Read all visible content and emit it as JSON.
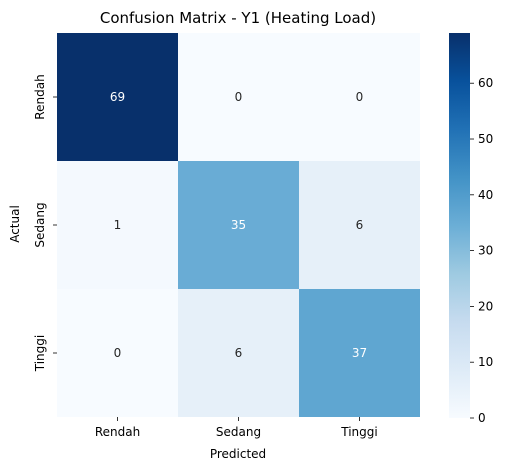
{
  "chart_data": {
    "type": "heatmap",
    "title": "Confusion Matrix - Y1 (Heating Load)",
    "xlabel": "Predicted",
    "ylabel": "Actual",
    "x_categories": [
      "Rendah",
      "Sedang",
      "Tinggi"
    ],
    "y_categories": [
      "Rendah",
      "Sedang",
      "Tinggi"
    ],
    "values": [
      [
        69,
        0,
        0
      ],
      [
        1,
        35,
        6
      ],
      [
        0,
        6,
        37
      ]
    ],
    "colorbar": {
      "min": 0,
      "max": 69,
      "ticks": [
        "0",
        "10",
        "20",
        "30",
        "40",
        "50",
        "60"
      ]
    },
    "colormap": "Blues"
  }
}
